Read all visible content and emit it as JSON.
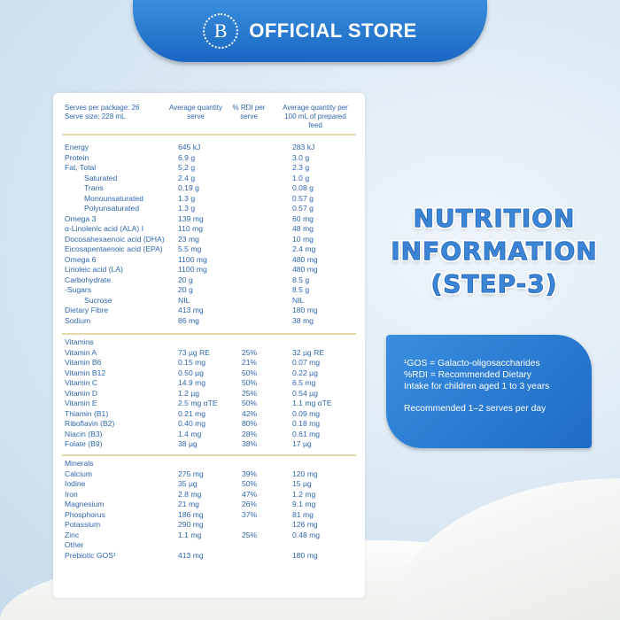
{
  "banner": {
    "logo_letter": "B",
    "title": "OFFICIAL STORE"
  },
  "table": {
    "header": {
      "serves": "Serves per package: 26",
      "serve_size": "Serve size: 228 mL",
      "avg_serve": "Average quantity serve",
      "rdi": "% RDI per serve",
      "per100": "Average quantity per 100 mL of prepared feed"
    },
    "sections": [
      {
        "rows": [
          [
            "Energy",
            "645 kJ",
            "",
            "283 kJ",
            0
          ],
          [
            "Protein",
            "6.9 g",
            "",
            "3.0 g",
            0
          ],
          [
            "Fat, Total",
            "5,2 g",
            "",
            "2.3 g",
            0
          ],
          [
            "Saturated",
            "2.4 g",
            "",
            "1.0 g",
            1
          ],
          [
            "Trans",
            "0,19 g",
            "",
            "0,08 g",
            1
          ],
          [
            "Monounsaturated",
            "1.3 g",
            "",
            "0.57 g",
            1
          ],
          [
            "Polyunsaturated",
            "1.3 g",
            "",
            "0.57 g",
            1
          ],
          [
            "Omega 3",
            "139 mg",
            "",
            "60 mg",
            0
          ],
          [
            "α-Linolenic acid (ALA) I",
            "110 mg",
            "",
            "48 mg",
            0
          ],
          [
            "Docosahexaenoic acid (DHA)",
            "23 mg",
            "",
            "10 mg",
            0
          ],
          [
            "Eicosapentaenoic acid (EPA)",
            "5.5 mg",
            "",
            "2.4 mg",
            0
          ],
          [
            "Omega 6",
            "1100 mg",
            "",
            "480 mg",
            0
          ],
          [
            "Linoleic acid (LA)",
            "1100 mg",
            "",
            "480 mg",
            0
          ],
          [
            "Carbohydrate",
            "20 g",
            "",
            "8.5 g",
            0
          ],
          [
            "-Sugars",
            "20 g",
            "",
            "8.5 g",
            0
          ],
          [
            "Sucrose",
            "NIL",
            "",
            "NIL",
            1
          ],
          [
            "Dietary Fibre",
            "413 mg",
            "",
            "180 mg",
            0
          ],
          [
            "Sodium",
            "86 mg",
            "",
            "38 mg",
            0
          ]
        ]
      },
      {
        "rows": [
          [
            "Vitamins",
            "",
            "",
            "",
            0
          ],
          [
            "Vitamin A",
            "73 µg RE",
            "25%",
            "32 µg RE",
            0
          ],
          [
            "Vitamin B6",
            "0.15 mg",
            "21%",
            "0.07 mg",
            0
          ],
          [
            "Vitamin B12",
            "0.50 µg",
            "50%",
            "0.22 µg",
            0
          ],
          [
            "Vitamin C",
            "14.9 mg",
            "50%",
            "6.5 mg",
            0
          ],
          [
            "Vitamin D",
            "1.2 µg",
            "25%",
            "0.54 µg",
            0
          ],
          [
            "Vitamin E",
            "2.5 mg αTE",
            "50%",
            "1.1 mg αTE",
            0
          ],
          [
            "Thiamin (B1)",
            "0.21 mg",
            "42%",
            "0.09 mg",
            0
          ],
          [
            "Riboflavin (B2)",
            "0.40 mg",
            "80%",
            "0.18 mg",
            0
          ],
          [
            "Niacin (B3)",
            "1.4 mg",
            "28%",
            "0.61 mg",
            0
          ],
          [
            "Folate (B9)",
            "38 µg",
            "38%",
            "17 µg",
            0
          ]
        ]
      },
      {
        "rows": [
          [
            "Minerals",
            "",
            "",
            "",
            0
          ],
          [
            "Calcium",
            "275 mg",
            "39%",
            "120 mg",
            0
          ],
          [
            "Iodine",
            "35 µg",
            "50%",
            "15 µg",
            0
          ],
          [
            "Iron",
            "2.8 mg",
            "47%",
            "1.2 mg",
            0
          ],
          [
            "Magnesium",
            "21 mg",
            "26%",
            "9.1 mg",
            0
          ],
          [
            "Phosphorus",
            "186 mg",
            "37%",
            "81 mg",
            0
          ],
          [
            "Potassium",
            "290 mg",
            "",
            "126 mg",
            0
          ],
          [
            "Zinc",
            "1.1 mg",
            "25%",
            "0.48 mg",
            0
          ],
          [
            "Other",
            "",
            "",
            "",
            0
          ],
          [
            "Prebiotic GOS¹",
            "413 mg",
            "",
            "180 mg",
            0
          ]
        ]
      }
    ]
  },
  "heading": {
    "line1": "NUTRITION",
    "line2": "INFORMATION",
    "line3": "(STEP-3)"
  },
  "info": {
    "l1": "¹GOS = Galacto-oligosaccharides",
    "l2": "%RDI = Recommended Dietary",
    "l3": "Intake for children aged 1 to 3 years",
    "l4": "Recommended 1–2 serves per day"
  }
}
